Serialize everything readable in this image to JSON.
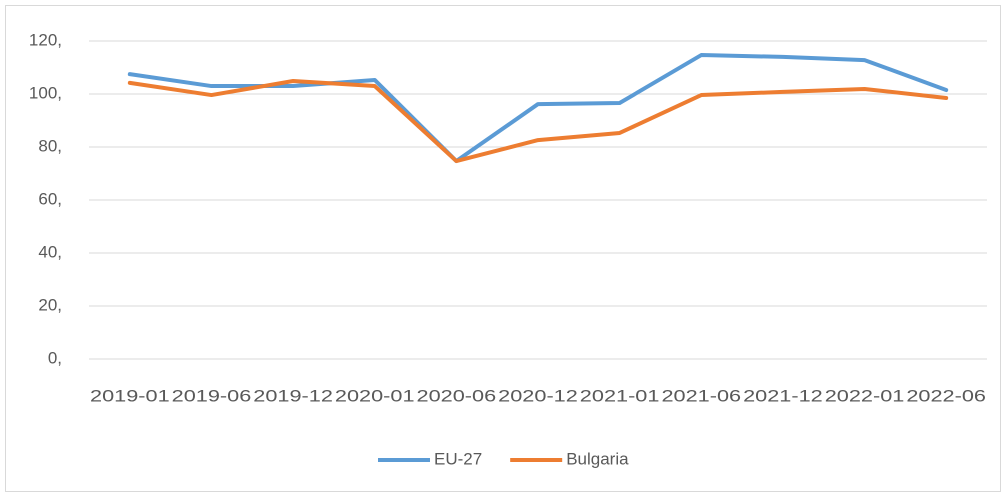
{
  "chart_data": {
    "type": "line",
    "categories": [
      "2019-01",
      "2019-06",
      "2019-12",
      "2020-01",
      "2020-06",
      "2020-12",
      "2021-01",
      "2021-06",
      "2021-12",
      "2022-01",
      "2022-06"
    ],
    "series": [
      {
        "name": "EU-27",
        "color": "#5b9bd5",
        "values": [
          107.5,
          103,
          103,
          105.3,
          74.7,
          96.2,
          96.6,
          114.7,
          114,
          112.8,
          101.5
        ]
      },
      {
        "name": "Bulgaria",
        "color": "#ed7d31",
        "values": [
          104.2,
          99.6,
          104.9,
          103,
          74.7,
          82.6,
          85.3,
          99.6,
          100.8,
          101.9,
          98.5
        ]
      }
    ],
    "ylim": [
      0,
      120
    ],
    "yticks": [
      {
        "value": 0,
        "label": "0,"
      },
      {
        "value": 20,
        "label": "20,"
      },
      {
        "value": 40,
        "label": "40,"
      },
      {
        "value": 60,
        "label": "60,"
      },
      {
        "value": 80,
        "label": "80,"
      },
      {
        "value": 100,
        "label": "100,"
      },
      {
        "value": 120,
        "label": "120,"
      }
    ],
    "grid": true,
    "legend": "bottom"
  }
}
